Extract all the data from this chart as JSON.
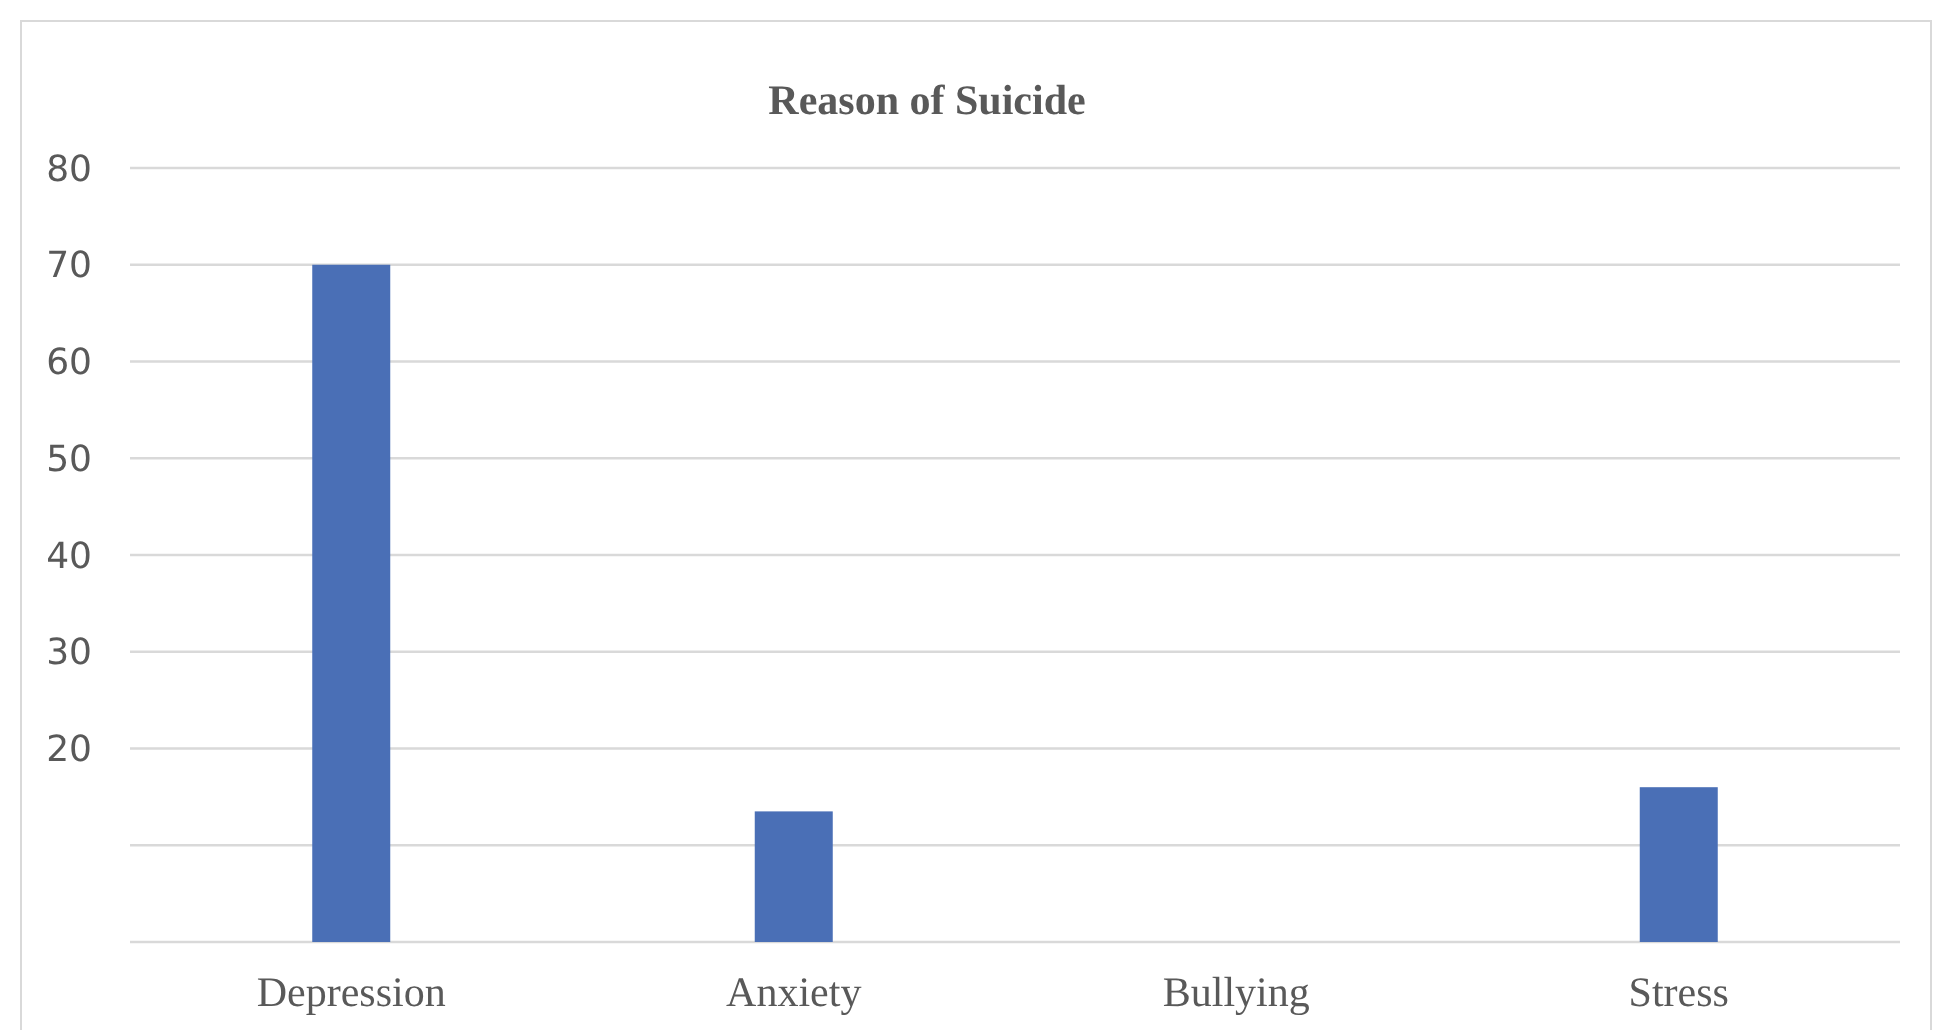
{
  "chart_data": {
    "type": "bar",
    "title": "Reason of Suicide",
    "categories": [
      "Depression",
      "Anxiety",
      "Bullying",
      "Stress"
    ],
    "values": [
      70,
      13.5,
      0,
      16
    ],
    "color": "#4a6fb6",
    "ylim": [
      0,
      80
    ],
    "yticks": [
      {
        "value": 0,
        "label": null
      },
      {
        "value": 10,
        "label": null
      },
      20,
      30,
      40,
      50,
      60,
      70,
      80
    ],
    "grid": "y"
  }
}
